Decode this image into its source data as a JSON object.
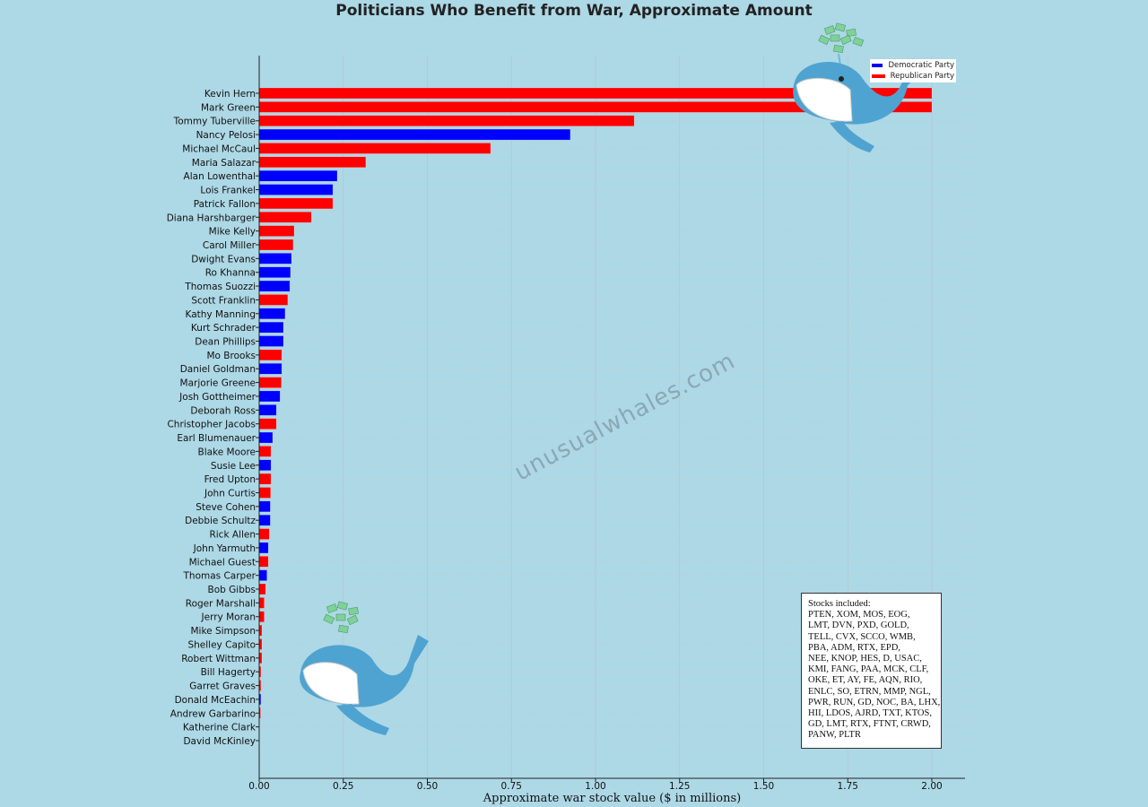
{
  "chart_data": {
    "type": "bar",
    "orientation": "horizontal",
    "title": "Politicians Who Benefit from War, Approximate Amount",
    "xlabel": "Approximate war stock value ($ in millions)",
    "ylabel": "",
    "xlim": [
      0,
      2.1
    ],
    "xticks": [
      "0.00",
      "0.25",
      "0.50",
      "0.75",
      "1.00",
      "1.25",
      "1.50",
      "1.75",
      "2.00"
    ],
    "grid": true,
    "legend_position": "top-right",
    "legend": [
      {
        "label": "Democratic Party",
        "party": "D",
        "color": "#0000ff"
      },
      {
        "label": "Republican Party",
        "party": "R",
        "color": "#ff0000"
      }
    ],
    "categories": [
      "Kevin Hern",
      "Mark Green",
      "Tommy Tuberville",
      "Nancy Pelosi",
      "Michael McCaul",
      "Maria Salazar",
      "Alan Lowenthal",
      "Lois Frankel",
      "Patrick Fallon",
      "Diana Harshbarger",
      "Mike Kelly",
      "Carol Miller",
      "Dwight Evans",
      "Ro Khanna",
      "Thomas Suozzi",
      "Scott Franklin",
      "Kathy Manning",
      "Kurt Schrader",
      "Dean Phillips",
      "Mo Brooks",
      "Daniel Goldman",
      "Marjorie Greene",
      "Josh Gottheimer",
      "Deborah Ross",
      "Christopher Jacobs",
      "Earl Blumenauer",
      "Blake Moore",
      "Susie Lee",
      "Fred Upton",
      "John Curtis",
      "Steve Cohen",
      "Debbie Schultz",
      "Rick Allen",
      "John Yarmuth",
      "Michael Guest",
      "Thomas Carper",
      "Bob Gibbs",
      "Roger Marshall",
      "Jerry Moran",
      "Mike Simpson",
      "Shelley Capito",
      "Robert Wittman",
      "Bill Hagerty",
      "Garret Graves",
      "Donald McEachin",
      "Andrew Garbarino",
      "Katherine Clark",
      "David McKinley"
    ],
    "values": [
      2.0,
      2.0,
      1.115,
      0.925,
      0.688,
      0.317,
      0.232,
      0.219,
      0.219,
      0.155,
      0.104,
      0.101,
      0.096,
      0.093,
      0.091,
      0.085,
      0.077,
      0.072,
      0.072,
      0.067,
      0.067,
      0.066,
      0.062,
      0.051,
      0.051,
      0.04,
      0.035,
      0.035,
      0.035,
      0.034,
      0.033,
      0.033,
      0.03,
      0.027,
      0.027,
      0.023,
      0.019,
      0.015,
      0.015,
      0.008,
      0.008,
      0.008,
      0.005,
      0.005,
      0.005,
      0.004,
      0.001,
      0.0005
    ],
    "party": [
      "R",
      "R",
      "R",
      "D",
      "R",
      "R",
      "D",
      "D",
      "R",
      "R",
      "R",
      "R",
      "D",
      "D",
      "D",
      "R",
      "D",
      "D",
      "D",
      "R",
      "D",
      "R",
      "D",
      "D",
      "R",
      "D",
      "R",
      "D",
      "R",
      "R",
      "D",
      "D",
      "R",
      "D",
      "R",
      "D",
      "R",
      "R",
      "R",
      "R",
      "R",
      "R",
      "R",
      "R",
      "D",
      "R",
      "D",
      "R"
    ]
  },
  "stocks_box": {
    "heading": "Stocks included:",
    "lines": [
      "PTEN, XOM, MOS, EOG,",
      "LMT, DVN, PXD, GOLD,",
      "TELL, CVX, SCCO, WMB,",
      "PBA, ADM, RTX, EPD,",
      "NEE, KNOP, HES, D, USAC,",
      "KMI, FANG, PAA, MCK, CLF,",
      "OKE, ET, AY, FE, AQN, RIO,",
      "ENLC, SO, ETRN, MMP, NGL,",
      "PWR, RUN, GD, NOC, BA, LHX,",
      "HII, LDOS, AJRD, TXT, KTOS,",
      "GD, LMT, RTX, FTNT, CRWD,",
      "PANW, PLTR"
    ]
  },
  "watermark": "unusualwhales.com"
}
